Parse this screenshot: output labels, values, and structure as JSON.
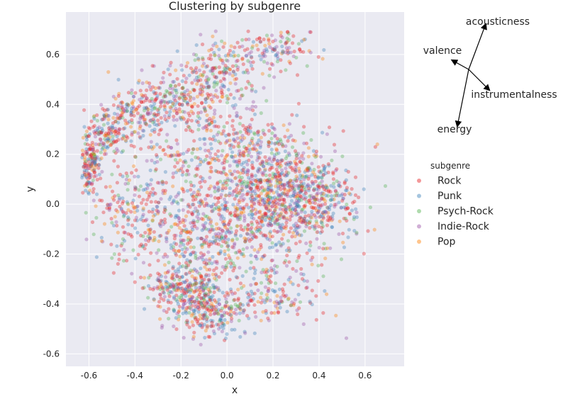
{
  "chart_data": {
    "type": "scatter",
    "title": "Clustering by subgenre",
    "xlabel": "x",
    "ylabel": "y",
    "xlim": [
      -0.7,
      0.77
    ],
    "ylim": [
      -0.65,
      0.77
    ],
    "xticks": [
      "-0.6",
      "-0.4",
      "-0.2",
      "0.0",
      "0.2",
      "0.4",
      "0.6"
    ],
    "yticks": [
      "-0.6",
      "-0.4",
      "-0.2",
      "0.0",
      "0.2",
      "0.4",
      "0.6"
    ],
    "grid": true,
    "background": "#eaeaf2",
    "legend": {
      "title": "subgenre",
      "position": "outside-right",
      "entries": [
        {
          "name": "Rock",
          "color": "#e41a1c"
        },
        {
          "name": "Punk",
          "color": "#377eb8"
        },
        {
          "name": "Psych-Rock",
          "color": "#4daf4a"
        },
        {
          "name": "Indie-Rock",
          "color": "#984ea3"
        },
        {
          "name": "Pop",
          "color": "#ff7f00"
        }
      ]
    },
    "loadings": [
      {
        "label": "acousticness",
        "dx": 0.9,
        "dy": 2.4
      },
      {
        "label": "valence",
        "dx": -0.9,
        "dy": 0.5
      },
      {
        "label": "instrumentalness",
        "dx": 1.1,
        "dy": -1.1
      },
      {
        "label": "energy",
        "dx": -0.6,
        "dy": -3.0
      }
    ],
    "clusters": [
      {
        "cx": -0.6,
        "cy": 0.16,
        "sx": 0.025,
        "sy": 0.06,
        "weight": 5
      },
      {
        "cx": -0.52,
        "cy": 0.28,
        "sx": 0.05,
        "sy": 0.05,
        "weight": 4
      },
      {
        "cx": -0.4,
        "cy": 0.36,
        "sx": 0.08,
        "sy": 0.05,
        "weight": 5
      },
      {
        "cx": -0.22,
        "cy": 0.43,
        "sx": 0.09,
        "sy": 0.06,
        "weight": 6
      },
      {
        "cx": -0.02,
        "cy": 0.52,
        "sx": 0.08,
        "sy": 0.07,
        "weight": 6
      },
      {
        "cx": 0.2,
        "cy": 0.62,
        "sx": 0.1,
        "sy": 0.05,
        "weight": 4
      },
      {
        "cx": 0.22,
        "cy": 0.05,
        "sx": 0.14,
        "sy": 0.1,
        "weight": 20
      },
      {
        "cx": 0.4,
        "cy": 0.0,
        "sx": 0.1,
        "sy": 0.09,
        "weight": 8
      },
      {
        "cx": 0.05,
        "cy": -0.08,
        "sx": 0.15,
        "sy": 0.12,
        "weight": 12
      },
      {
        "cx": -0.2,
        "cy": -0.1,
        "sx": 0.12,
        "sy": 0.12,
        "weight": 9
      },
      {
        "cx": -0.42,
        "cy": 0.0,
        "sx": 0.08,
        "sy": 0.1,
        "weight": 5
      },
      {
        "cx": -0.18,
        "cy": -0.35,
        "sx": 0.08,
        "sy": 0.07,
        "weight": 9
      },
      {
        "cx": -0.05,
        "cy": -0.43,
        "sx": 0.07,
        "sy": 0.05,
        "weight": 6
      },
      {
        "cx": 0.2,
        "cy": -0.35,
        "sx": 0.12,
        "sy": 0.08,
        "weight": 5
      },
      {
        "cx": 0.1,
        "cy": 0.25,
        "sx": 0.12,
        "sy": 0.08,
        "weight": 6
      },
      {
        "cx": -0.15,
        "cy": 0.2,
        "sx": 0.12,
        "sy": 0.1,
        "weight": 5
      }
    ],
    "point_count": 3600,
    "seed": 7
  }
}
